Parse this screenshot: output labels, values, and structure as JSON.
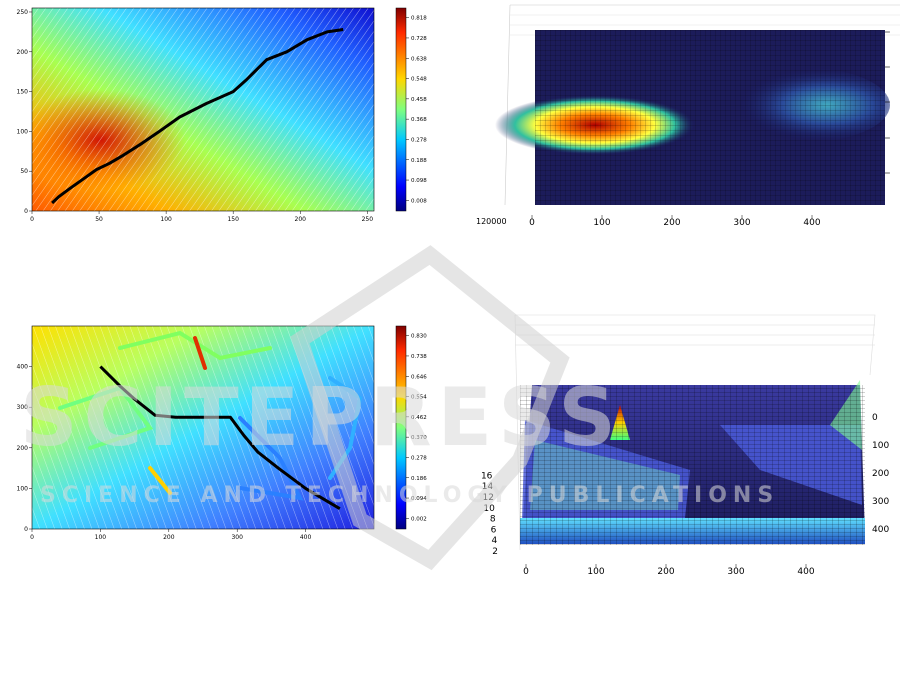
{
  "chart_data": [
    {
      "type": "heatmap",
      "panel": "top-left",
      "xlim": [
        0,
        255
      ],
      "ylim": [
        0,
        255
      ],
      "x_ticks": [
        "0",
        "50",
        "100",
        "150",
        "200",
        "250"
      ],
      "y_ticks": [
        "0",
        "50",
        "100",
        "150",
        "200",
        "250"
      ],
      "colorbar_ticks": [
        "0.008",
        "0.098",
        "0.188",
        "0.278",
        "0.368",
        "0.458",
        "0.548",
        "0.638",
        "0.728",
        "0.818"
      ],
      "path_points": [
        [
          15,
          10
        ],
        [
          20,
          18
        ],
        [
          28,
          28
        ],
        [
          38,
          40
        ],
        [
          48,
          52
        ],
        [
          58,
          60
        ],
        [
          68,
          70
        ],
        [
          82,
          85
        ],
        [
          95,
          100
        ],
        [
          110,
          118
        ],
        [
          130,
          135
        ],
        [
          150,
          150
        ],
        [
          160,
          165
        ],
        [
          175,
          190
        ],
        [
          190,
          200
        ],
        [
          205,
          215
        ],
        [
          220,
          225
        ],
        [
          232,
          228
        ]
      ]
    },
    {
      "type": "surface",
      "panel": "top-right",
      "x_ticks": [
        "0",
        "100",
        "200",
        "300",
        "400"
      ],
      "z_tick_cluster": "120000"
    },
    {
      "type": "heatmap",
      "panel": "bottom-left",
      "xlim": [
        0,
        500
      ],
      "ylim": [
        0,
        500
      ],
      "x_ticks": [
        "0",
        "100",
        "200",
        "300",
        "400"
      ],
      "y_ticks": [
        "0",
        "100",
        "200",
        "300",
        "400"
      ],
      "colorbar_ticks": [
        "0.002",
        "0.094",
        "0.186",
        "0.278",
        "0.370",
        "0.462",
        "0.554",
        "0.646",
        "0.738",
        "0.830"
      ],
      "path_points": [
        [
          100,
          400
        ],
        [
          130,
          350
        ],
        [
          150,
          320
        ],
        [
          180,
          280
        ],
        [
          210,
          275
        ],
        [
          290,
          275
        ],
        [
          310,
          230
        ],
        [
          330,
          190
        ],
        [
          360,
          150
        ],
        [
          400,
          100
        ],
        [
          450,
          50
        ]
      ]
    },
    {
      "type": "surface",
      "panel": "bottom-right",
      "x_ticks": [
        "0",
        "100",
        "200",
        "300",
        "400"
      ],
      "y_ticks": [
        "0",
        "100",
        "200",
        "300",
        "400"
      ],
      "z_ticks": [
        "2",
        "4",
        "6",
        "8",
        "10",
        "12",
        "14",
        "16"
      ]
    }
  ]
}
